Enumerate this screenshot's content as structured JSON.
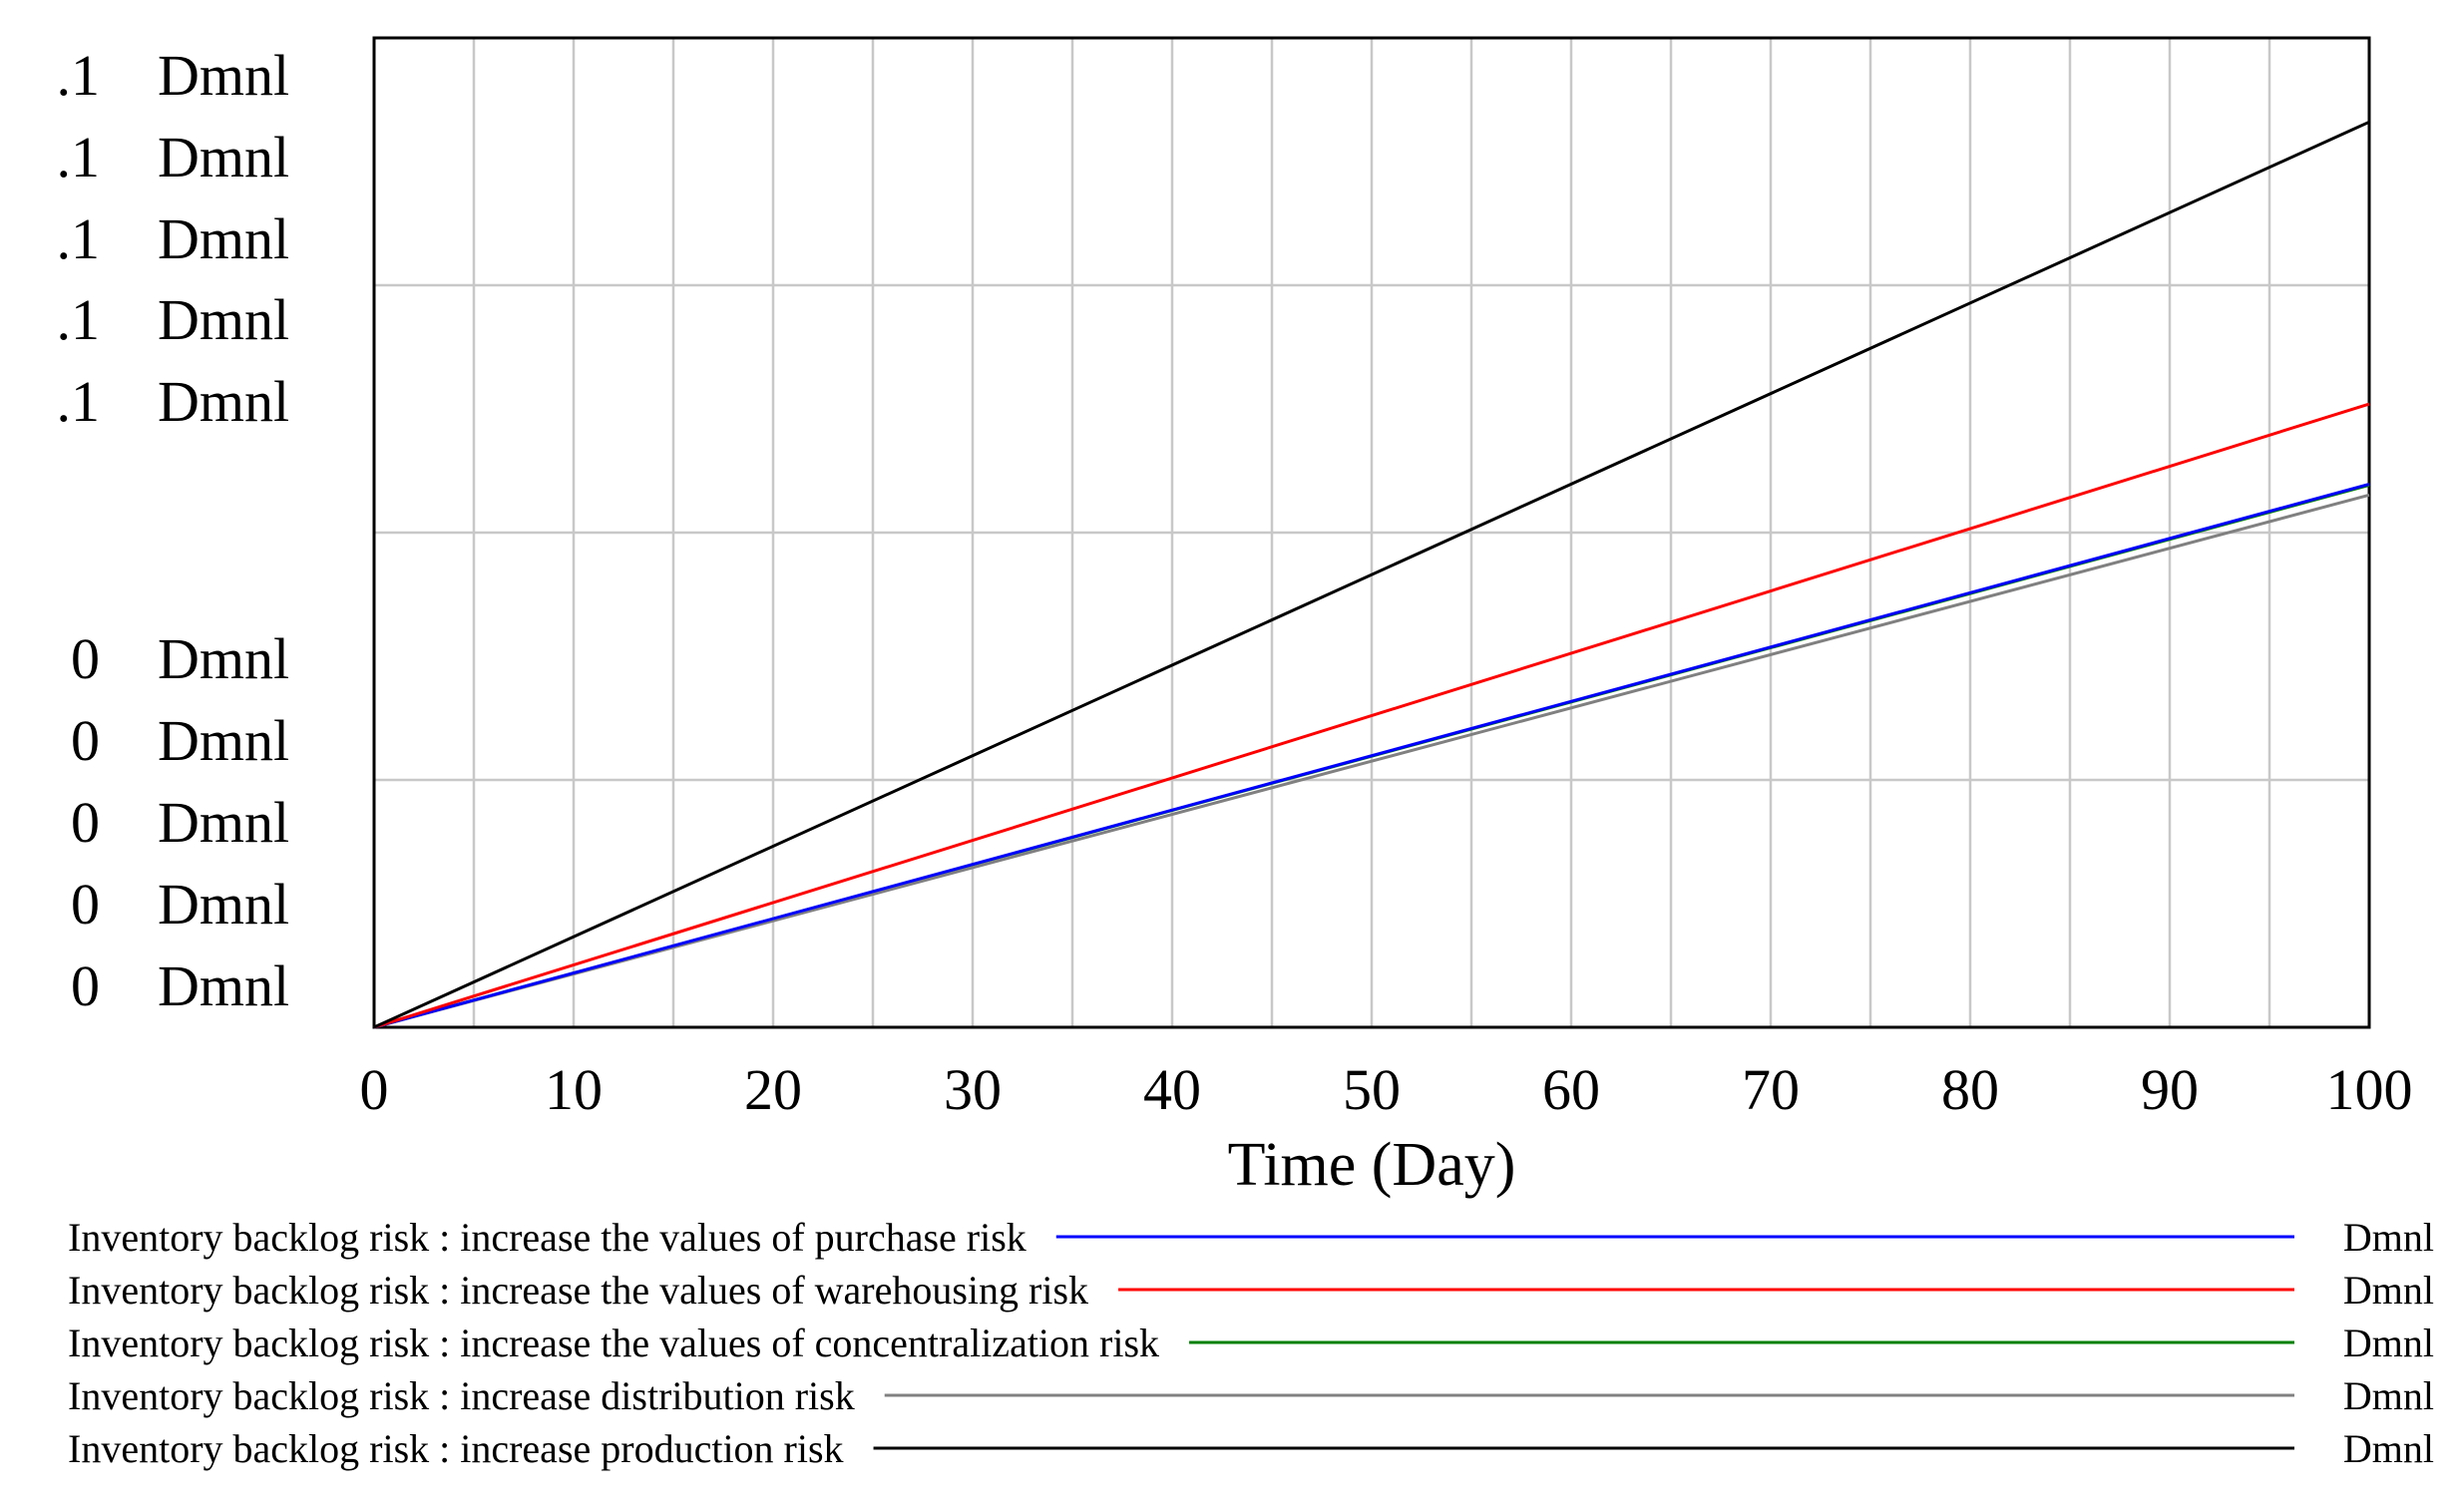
{
  "chart_data": {
    "type": "line",
    "title": "",
    "xlabel": "Time (Day)",
    "ylabel": "",
    "x_ticks": [
      "0",
      "10",
      "20",
      "30",
      "40",
      "50",
      "60",
      "70",
      "80",
      "90",
      "100"
    ],
    "xlim": [
      0,
      100
    ],
    "ylim": [
      0,
      1
    ],
    "y_tick_labels_top": [
      {
        "value": ".1",
        "unit": "Dmnl"
      },
      {
        "value": ".1",
        "unit": "Dmnl"
      },
      {
        "value": ".1",
        "unit": "Dmnl"
      },
      {
        "value": ".1",
        "unit": "Dmnl"
      },
      {
        "value": ".1",
        "unit": "Dmnl"
      }
    ],
    "y_tick_labels_bottom": [
      {
        "value": "0",
        "unit": "Dmnl"
      },
      {
        "value": "0",
        "unit": "Dmnl"
      },
      {
        "value": "0",
        "unit": "Dmnl"
      },
      {
        "value": "0",
        "unit": "Dmnl"
      },
      {
        "value": "0",
        "unit": "Dmnl"
      }
    ],
    "grid": true,
    "series": [
      {
        "name": "Inventory backlog risk : increase the values of purchase risk",
        "unit": "Dmnl",
        "color": "#0000ff",
        "x": [
          0,
          100
        ],
        "y": [
          0,
          0.549
        ]
      },
      {
        "name": "Inventory backlog risk : increase the values of warehousing risk",
        "unit": "Dmnl",
        "color": "#ff0000",
        "x": [
          0,
          100
        ],
        "y": [
          0,
          0.63
        ]
      },
      {
        "name": "Inventory backlog risk : increase the values of concentralization risk",
        "unit": "Dmnl",
        "color": "#008000",
        "x": [
          0,
          100
        ],
        "y": [
          0,
          0.548
        ]
      },
      {
        "name": "Inventory backlog risk : increase distribution risk",
        "unit": "Dmnl",
        "color": "#808080",
        "x": [
          0,
          100
        ],
        "y": [
          0,
          0.538
        ]
      },
      {
        "name": "Inventory backlog risk : increase production risk",
        "unit": "Dmnl",
        "color": "#000000",
        "x": [
          0,
          100
        ],
        "y": [
          0,
          0.915
        ]
      }
    ],
    "legend_position": "bottom"
  }
}
